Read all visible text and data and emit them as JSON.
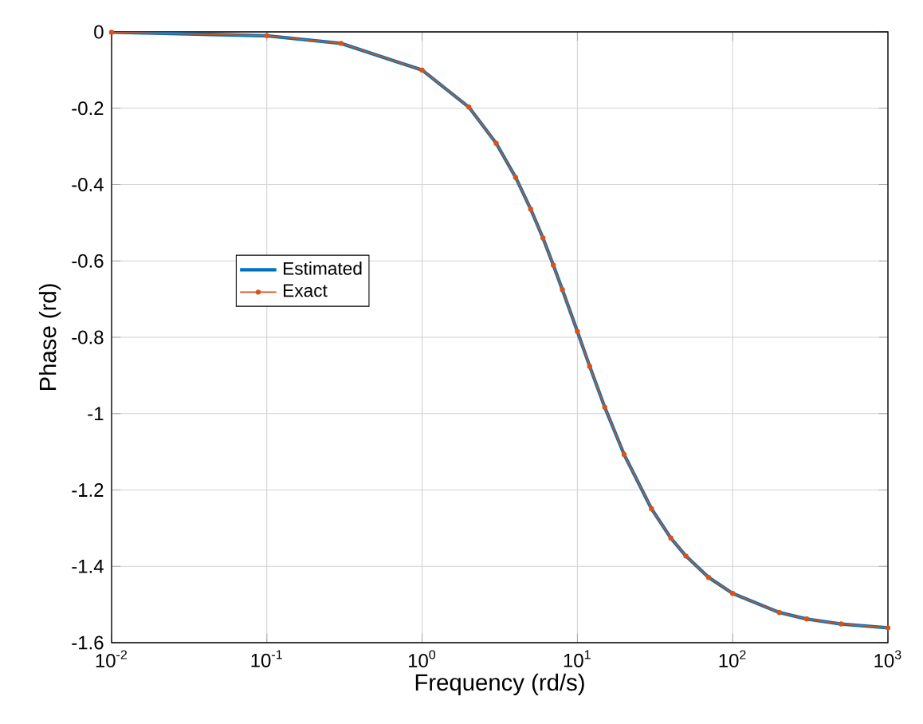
{
  "chart_data": {
    "type": "line",
    "xlabel": "Frequency (rd/s)",
    "ylabel": "Phase (rd)",
    "log": "x",
    "grid": true,
    "legend": "left",
    "xlim": [
      0.01,
      1000
    ],
    "ylim": [
      -1.6,
      0
    ],
    "xticks": [
      {
        "value": 0.01,
        "label": "10$^{-2}$"
      },
      {
        "value": 0.1,
        "label": "10$^{-1}$"
      },
      {
        "value": 1,
        "label": "10$^{0}$"
      },
      {
        "value": 10,
        "label": "10$^{1}$"
      },
      {
        "value": 100,
        "label": "10$^{2}$"
      },
      {
        "value": 1000,
        "label": "10$^{3}$"
      }
    ],
    "yticks": [
      -1.6,
      -1.4,
      -1.2,
      -1,
      -0.8,
      -0.6,
      -0.4,
      -0.2,
      0
    ],
    "x": [
      0.01,
      0.1,
      0.3,
      1,
      2,
      3,
      4,
      5,
      6,
      7,
      8,
      10,
      12,
      15,
      20,
      30,
      40,
      50,
      70,
      100,
      200,
      300,
      500,
      1000
    ],
    "series": [
      {
        "name": "Estimated",
        "color": "#0072bd",
        "marker": "none",
        "values": [
          -0.001,
          -0.01,
          -0.03,
          -0.1,
          -0.197,
          -0.292,
          -0.381,
          -0.464,
          -0.54,
          -0.611,
          -0.675,
          -0.785,
          -0.876,
          -0.983,
          -1.107,
          -1.249,
          -1.326,
          -1.373,
          -1.429,
          -1.471,
          -1.521,
          -1.538,
          -1.551,
          -1.561
        ]
      },
      {
        "name": "Exact",
        "color": "#d95319",
        "marker": "circle",
        "values": [
          -0.001,
          -0.01,
          -0.03,
          -0.1,
          -0.197,
          -0.292,
          -0.381,
          -0.464,
          -0.54,
          -0.611,
          -0.675,
          -0.785,
          -0.876,
          -0.983,
          -1.107,
          -1.249,
          -1.326,
          -1.373,
          -1.429,
          -1.471,
          -1.521,
          -1.538,
          -1.551,
          -1.561
        ]
      }
    ]
  }
}
